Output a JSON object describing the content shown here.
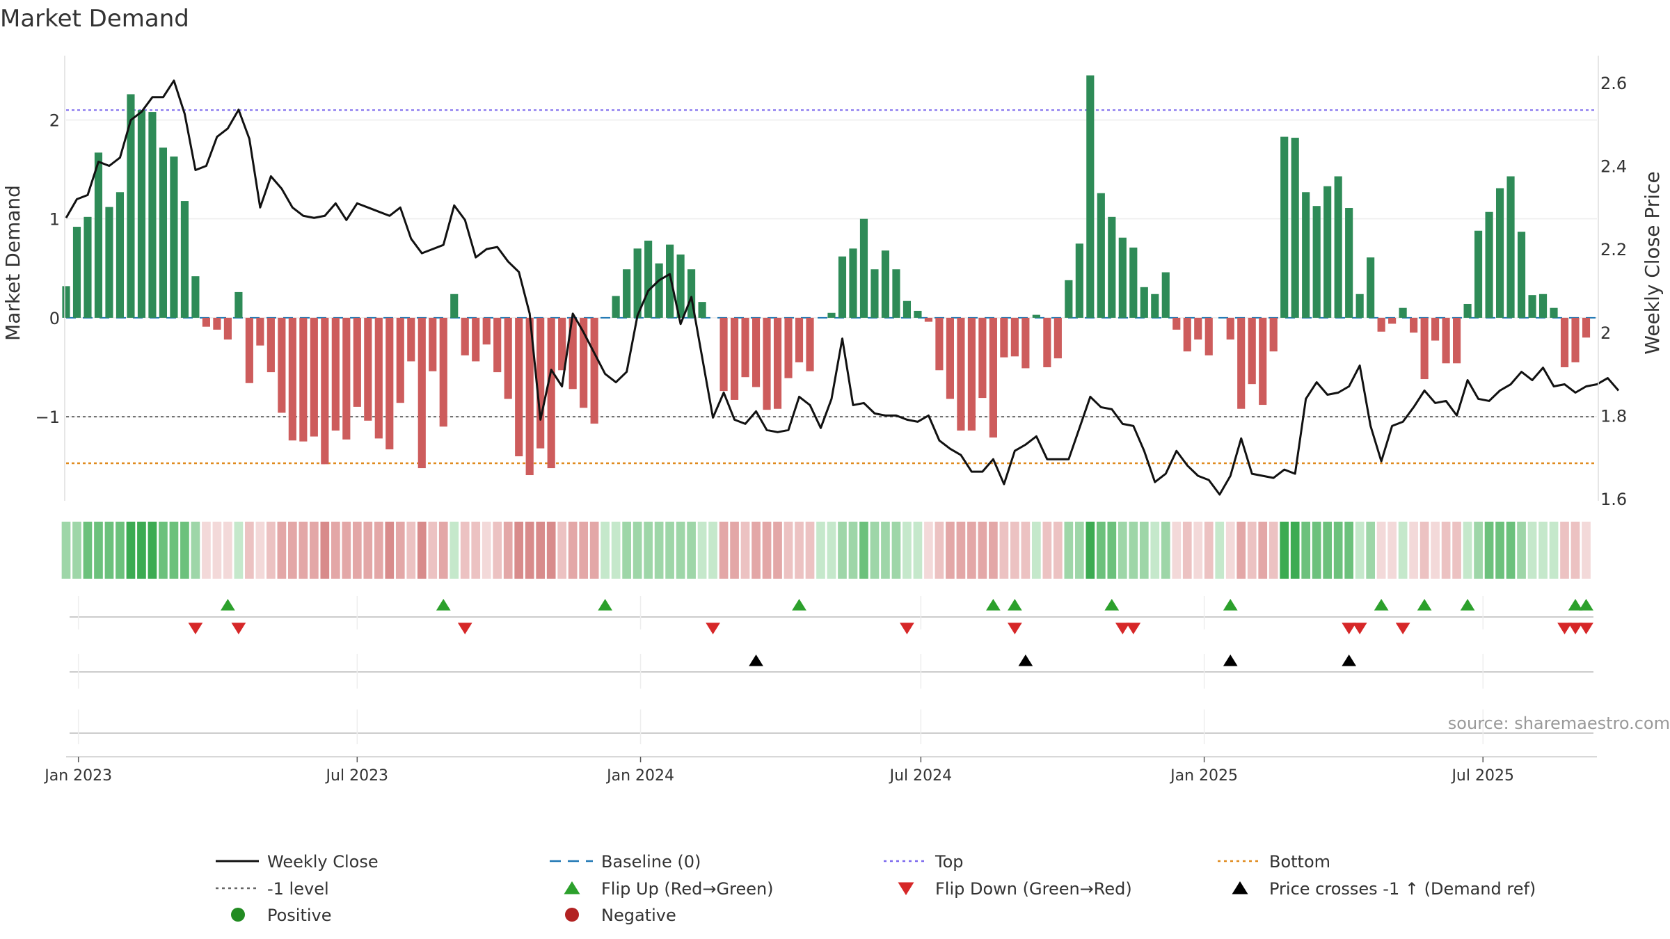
{
  "chart_data": {
    "type": "bar",
    "title": "Market Demand",
    "ylabel_left": "Market Demand",
    "ylabel_right": "Weekly Close Price",
    "source_text": "source: sharemaestro.com",
    "x_start": "2022-12-24",
    "x_end": "2025-09-13",
    "x_ticks": [
      {
        "label": "Jan 2023",
        "date": "2023-01-01"
      },
      {
        "label": "Jul 2023",
        "date": "2023-07-01"
      },
      {
        "label": "Jan 2024",
        "date": "2024-01-01"
      },
      {
        "label": "Jul 2024",
        "date": "2024-07-01"
      },
      {
        "label": "Jan 2025",
        "date": "2025-01-01"
      },
      {
        "label": "Jul 2025",
        "date": "2025-07-01"
      }
    ],
    "first_week": "2022-12-24",
    "week_count": 141,
    "left_axis": {
      "ylim": [
        -1.85,
        2.65
      ],
      "ticks": [
        {
          "value": 2,
          "label": "2"
        },
        {
          "value": 1,
          "label": "1"
        },
        {
          "value": 0,
          "label": "0"
        },
        {
          "value": -1,
          "label": "−1"
        }
      ]
    },
    "right_axis": {
      "ylim": [
        1.595,
        2.665
      ],
      "ticks": [
        {
          "value": 2.6,
          "label": "2.6"
        },
        {
          "value": 2.4,
          "label": "2.4"
        },
        {
          "value": 2.2,
          "label": "2.2"
        },
        {
          "value": 2.0,
          "label": "2"
        },
        {
          "value": 1.8,
          "label": "1.8"
        },
        {
          "value": 1.6,
          "label": "1.6"
        }
      ]
    },
    "reference_lines": {
      "top": 2.1,
      "minus_one": -1.0,
      "bottom": -1.47,
      "baseline": 0
    },
    "demand": [
      0.32,
      0.92,
      1.02,
      1.67,
      1.12,
      1.27,
      2.26,
      2.1,
      2.08,
      1.72,
      1.63,
      1.18,
      0.42,
      -0.09,
      -0.12,
      -0.22,
      0.26,
      -0.66,
      -0.28,
      -0.55,
      -0.96,
      -1.24,
      -1.25,
      -1.2,
      -1.48,
      -1.14,
      -1.23,
      -0.9,
      -1.04,
      -1.22,
      -1.33,
      -0.86,
      -0.44,
      -1.52,
      -0.54,
      -1.1,
      0.24,
      -0.38,
      -0.44,
      -0.27,
      -0.55,
      -0.82,
      -1.4,
      -1.59,
      -1.32,
      -1.52,
      -0.53,
      -0.72,
      -0.91,
      -1.07,
      0.0,
      0.22,
      0.49,
      0.7,
      0.78,
      0.55,
      0.74,
      0.64,
      0.49,
      0.16,
      0.0,
      -0.74,
      -0.83,
      -0.6,
      -0.7,
      -0.93,
      -0.92,
      -0.61,
      -0.45,
      -0.54,
      0.0,
      0.05,
      0.62,
      0.7,
      1.0,
      0.49,
      0.68,
      0.49,
      0.17,
      0.07,
      -0.04,
      -0.53,
      -0.82,
      -1.14,
      -1.14,
      -0.81,
      -1.21,
      -0.4,
      -0.39,
      -0.51,
      0.03,
      -0.5,
      -0.41,
      0.38,
      0.75,
      2.45,
      1.26,
      1.02,
      0.81,
      0.71,
      0.31,
      0.24,
      0.46,
      -0.12,
      -0.34,
      -0.22,
      -0.38,
      0.0,
      -0.22,
      -0.92,
      -0.67,
      -0.88,
      -0.34,
      1.83,
      1.82,
      1.27,
      1.13,
      1.33,
      1.43,
      1.11,
      0.24,
      0.61,
      -0.14,
      -0.06,
      0.1,
      -0.15,
      -0.62,
      -0.23,
      -0.46,
      -0.46,
      0.14,
      0.88,
      1.07,
      1.31,
      1.43,
      0.87,
      0.23,
      0.24,
      0.1,
      -0.5,
      -0.45,
      -0.2
    ],
    "close": [
      2.275,
      2.32,
      2.33,
      2.41,
      2.4,
      2.42,
      2.51,
      2.53,
      2.565,
      2.565,
      2.605,
      2.525,
      2.39,
      2.4,
      2.47,
      2.49,
      2.535,
      2.465,
      2.3,
      2.375,
      2.345,
      2.3,
      2.28,
      2.275,
      2.28,
      2.31,
      2.27,
      2.31,
      2.3,
      2.29,
      2.28,
      2.3,
      2.225,
      2.19,
      2.2,
      2.21,
      2.305,
      2.27,
      2.18,
      2.2,
      2.205,
      2.17,
      2.145,
      2.045,
      1.79,
      1.91,
      1.87,
      2.045,
      2.0,
      1.95,
      1.9,
      1.88,
      1.905,
      2.04,
      2.1,
      2.125,
      2.14,
      2.02,
      2.085,
      1.94,
      1.795,
      1.855,
      1.79,
      1.78,
      1.81,
      1.765,
      1.76,
      1.765,
      1.845,
      1.825,
      1.77,
      1.84,
      1.985,
      1.825,
      1.83,
      1.805,
      1.8,
      1.8,
      1.79,
      1.785,
      1.8,
      1.74,
      1.72,
      1.705,
      1.665,
      1.665,
      1.695,
      1.635,
      1.715,
      1.73,
      1.75,
      1.695,
      1.695,
      1.695,
      1.77,
      1.845,
      1.82,
      1.815,
      1.78,
      1.775,
      1.715,
      1.64,
      1.66,
      1.715,
      1.68,
      1.655,
      1.645,
      1.61,
      1.655,
      1.745,
      1.66,
      1.655,
      1.65,
      1.67,
      1.66,
      1.84,
      1.88,
      1.85,
      1.855,
      1.87,
      1.92,
      1.775,
      1.69,
      1.775,
      1.785,
      1.82,
      1.86,
      1.83,
      1.835,
      1.8,
      1.885,
      1.84,
      1.835,
      1.86,
      1.875,
      1.905,
      1.885,
      1.915,
      1.87,
      1.875,
      1.855,
      1.87,
      1.875,
      1.89,
      1.86
    ],
    "flip_up_dates": [
      "2023-04-08",
      "2023-08-26",
      "2023-12-09",
      "2024-04-13",
      "2024-08-17",
      "2024-08-31",
      "2024-11-02",
      "2025-01-18",
      "2025-04-26",
      "2025-05-24",
      "2025-06-21",
      "2025-08-30",
      "2025-09-06"
    ],
    "flip_down_dates": [
      "2023-03-18",
      "2023-04-15",
      "2023-09-09",
      "2024-02-17",
      "2024-06-22",
      "2024-08-31",
      "2024-11-09",
      "2024-11-16",
      "2025-04-05",
      "2025-04-12",
      "2025-05-10",
      "2025-08-23",
      "2025-08-30",
      "2025-09-06"
    ],
    "price_cross_dates": [
      "2024-03-16",
      "2024-09-07",
      "2025-01-18",
      "2025-04-05"
    ],
    "colors": {
      "positive_bar": "#2e8b57",
      "negative_bar": "#cd5c5c",
      "close_line": "#111111",
      "baseline": "#1f77b4",
      "top_line": "#7b68ee",
      "minus_one_line": "#666666",
      "bottom_line": "#e08a1e",
      "flip_up": "#2ca02c",
      "flip_down": "#d62728",
      "price_cross": "#000000",
      "positive_dot": "#228b22",
      "negative_dot": "#b22222"
    },
    "legend": [
      {
        "label": "Weekly Close",
        "kind": "line",
        "color": "#111111"
      },
      {
        "label": "Baseline (0)",
        "kind": "dash",
        "color": "#1f77b4"
      },
      {
        "label": "Top",
        "kind": "dot",
        "color": "#7b68ee"
      },
      {
        "label": "Bottom",
        "kind": "dot",
        "color": "#e08a1e"
      },
      {
        "label": "-1 level",
        "kind": "dot",
        "color": "#666666"
      },
      {
        "label": "Flip Up (Red→Green)",
        "kind": "tri-up",
        "color": "#2ca02c"
      },
      {
        "label": "Flip Down (Green→Red)",
        "kind": "tri-down",
        "color": "#d62728"
      },
      {
        "label": "Price crosses -1 ↑ (Demand ref)",
        "kind": "tri-up",
        "color": "#000000"
      },
      {
        "label": "Positive",
        "kind": "circle",
        "color": "#228b22"
      },
      {
        "label": "Negative",
        "kind": "circle",
        "color": "#b22222"
      }
    ]
  }
}
